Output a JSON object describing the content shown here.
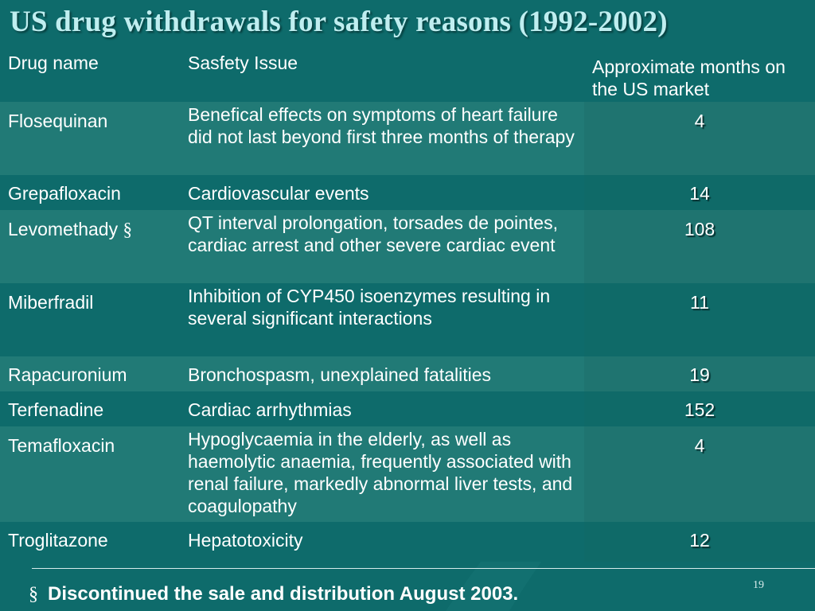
{
  "slide": {
    "title": "US drug withdrawals for safety reasons (1992-2002)",
    "page_number": "19",
    "footnote_symbol": "§",
    "footnote": "Discontinued the sale and distribution August 2003."
  },
  "table": {
    "headers": [
      "Drug name",
      "Sasfety Issue",
      "Approximate months on the US market"
    ],
    "rows": [
      {
        "drug": "Flosequinan",
        "mark": "",
        "issue": "Benefical effects on symptoms of heart failure did not last beyond first three months of therapy",
        "months": "4"
      },
      {
        "drug": "Grepafloxacin",
        "mark": "",
        "issue": "Cardiovascular events",
        "months": "14"
      },
      {
        "drug": "Levomethady",
        "mark": "§",
        "issue": "QT interval prolongation, torsades de pointes, cardiac arrest and other severe cardiac event",
        "months": "108"
      },
      {
        "drug": "Miberfradil",
        "mark": "",
        "issue": "Inhibition of CYP450 isoenzymes resulting in several significant interactions",
        "months": "11"
      },
      {
        "drug": "Rapacuronium",
        "mark": "",
        "issue": "Bronchospasm, unexplained fatalities",
        "months": "19"
      },
      {
        "drug": "Terfenadine",
        "mark": "",
        "issue": "Cardiac arrhythmias",
        "months": "152"
      },
      {
        "drug": "Temafloxacin",
        "mark": "",
        "issue": "Hypoglycaemia in the elderly, as well as haemolytic anaemia, frequently associated with renal failure, markedly abnormal liver tests, and coagulopathy",
        "months": "4"
      },
      {
        "drug": "Troglitazone",
        "mark": "",
        "issue": "Hepatotoxicity",
        "months": "12"
      }
    ]
  },
  "colors": {
    "background": "#0e6b6b",
    "row_light": "#217a76",
    "title_text": "#bfeef0"
  }
}
